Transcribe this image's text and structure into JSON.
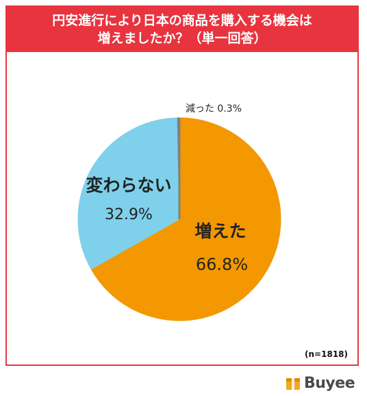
{
  "chart_data": {
    "type": "pie",
    "title": "円安進行により日本の商品を購入する機会は",
    "title_line2": "増えましたか？（単一回答）",
    "sample_size": "(n=1818)",
    "slices": [
      {
        "label": "増えた",
        "value": 66.8,
        "value_text": "66.8%",
        "color": "#f39800"
      },
      {
        "label": "変わらない",
        "value": 32.9,
        "value_text": "32.9%",
        "color": "#7fd0ea"
      },
      {
        "label": "減った",
        "value": 0.3,
        "value_text": "0.3%",
        "color": "#808080"
      }
    ],
    "small_slice_label": "減った 0.3%"
  },
  "brand": {
    "name": "Buyee",
    "icon": "buyee-box-icon",
    "color": "#f5a623"
  },
  "colors": {
    "frame": "#e8343f"
  }
}
